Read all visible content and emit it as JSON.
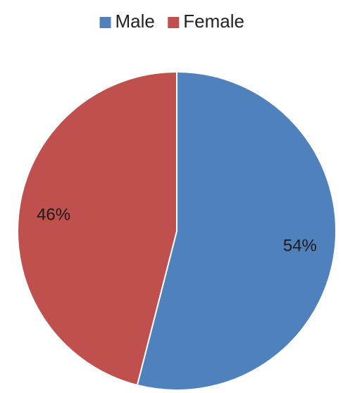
{
  "chart_data": {
    "type": "pie",
    "title": "",
    "legend_position": "top",
    "start_angle_deg": 0,
    "direction": "clockwise",
    "slices": [
      {
        "name": "Male",
        "value": 54,
        "label": "54%",
        "color": "#4f81bd"
      },
      {
        "name": "Female",
        "value": 46,
        "label": "46%",
        "color": "#c0504d"
      }
    ]
  }
}
